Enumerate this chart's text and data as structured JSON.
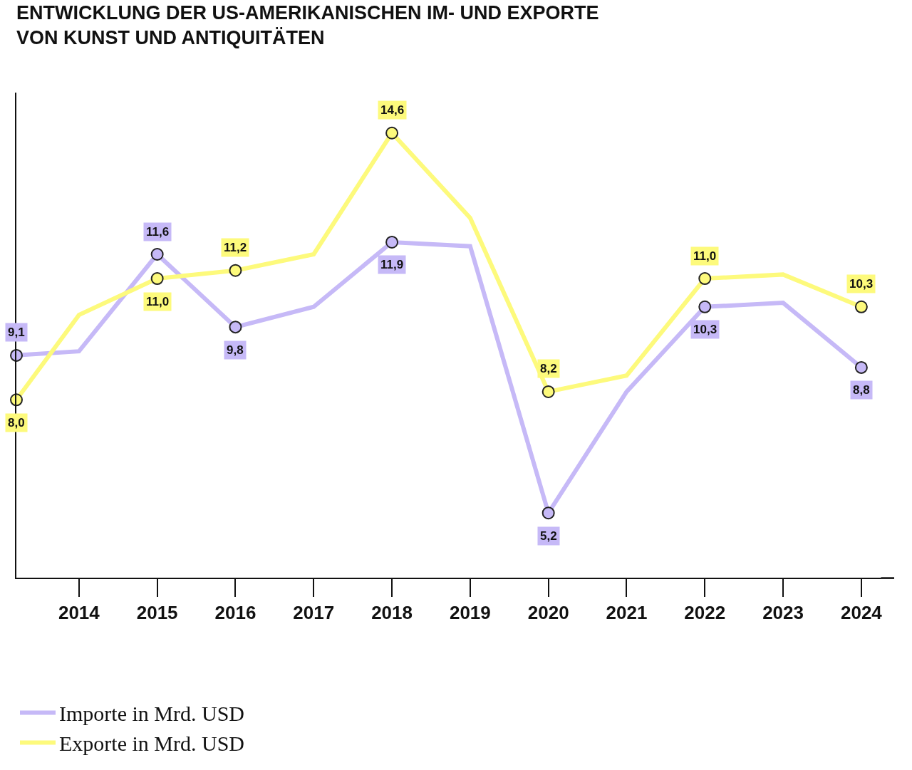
{
  "chart_data": {
    "type": "line",
    "title": "ENTWICKLUNG DER US-AMERIKANISCHEN IM- UND EXPORTE\nVON KUNST UND ANTIQUITÄTEN",
    "x": [
      2013.2,
      2014,
      2015,
      2016,
      2017,
      2018,
      2019,
      2020,
      2021,
      2022,
      2023,
      2024
    ],
    "xlim": [
      2013.2,
      2024.42
    ],
    "xticks": [
      2014,
      2015,
      2016,
      2017,
      2018,
      2019,
      2020,
      2021,
      2022,
      2023,
      2024
    ],
    "ylim": [
      3.6,
      15.6
    ],
    "tick_labels": "x",
    "grid": false,
    "legend": "bottom left",
    "marker": "circle",
    "line_style": "solid",
    "series": [
      {
        "name": "Importe in Mrd. USD",
        "color": "#c6b9f7",
        "values": [
          9.1,
          9.2,
          11.6,
          9.8,
          10.3,
          11.9,
          11.8,
          5.2,
          8.2,
          10.3,
          10.4,
          8.8
        ],
        "value_labels": [
          "9,1",
          null,
          "11,6",
          "9,8",
          null,
          "11,9",
          null,
          "5,2",
          null,
          "10,3",
          null,
          "8,8"
        ]
      },
      {
        "name": "Exporte in Mrd. USD",
        "color": "#fdfa7c",
        "values": [
          8.0,
          10.1,
          11.0,
          11.2,
          11.6,
          14.6,
          12.5,
          8.2,
          8.6,
          11.0,
          11.1,
          10.3
        ],
        "value_labels": [
          "8,0",
          null,
          "11,0",
          "11,2",
          null,
          "14,6",
          null,
          "8,2",
          null,
          "11,0",
          null,
          "10,3"
        ]
      }
    ]
  }
}
